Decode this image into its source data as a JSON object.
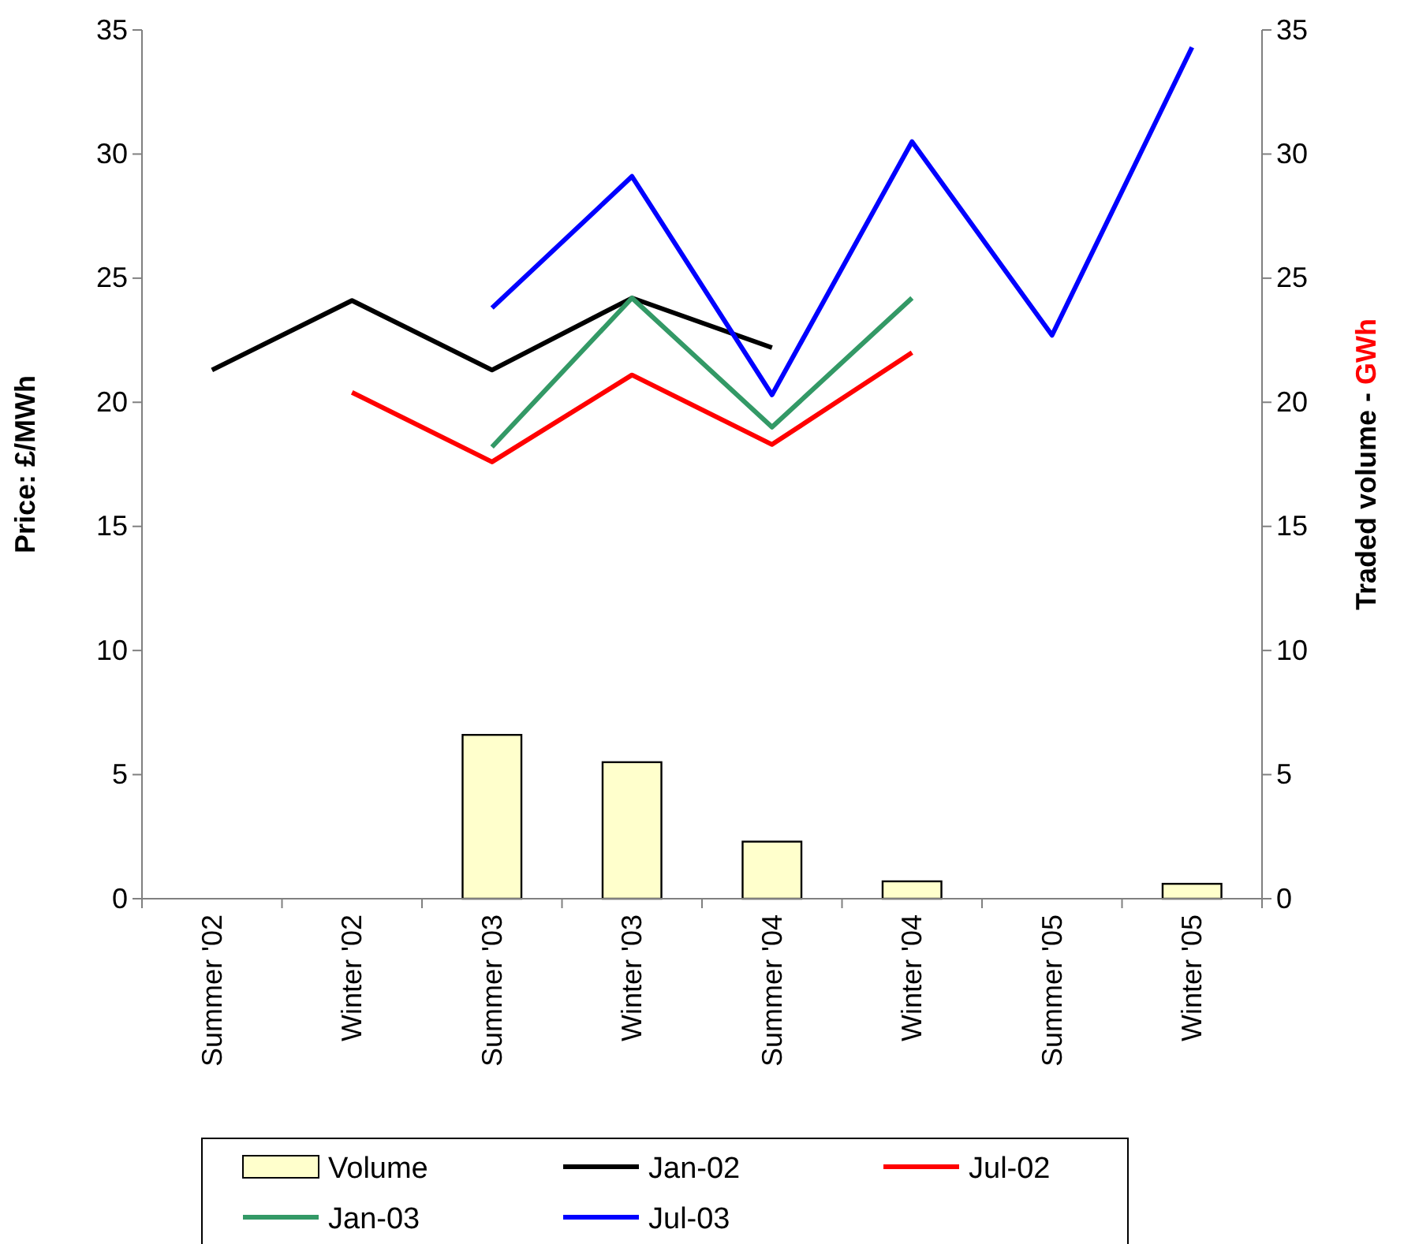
{
  "chart_data": {
    "type": "line",
    "ylabel": "Price: £/MWh",
    "y2label": "Traded volume - GWh",
    "categories": [
      "Summer '02",
      "Winter '02",
      "Summer '03",
      "Winter '03",
      "Summer '04",
      "Winter '04",
      "Summer '05",
      "Winter '05"
    ],
    "ylim": [
      0,
      35
    ],
    "yticks": [
      0,
      5,
      10,
      15,
      20,
      25,
      30,
      35
    ],
    "y2lim": [
      0,
      35
    ],
    "y2ticks": [
      0,
      5,
      10,
      15,
      20,
      25,
      30,
      35
    ],
    "grid": false,
    "legend": "bottom",
    "marker": "none",
    "line_style": "solid",
    "series": [
      {
        "name": "Volume",
        "type": "bar",
        "color": "#ffffcc",
        "values": [
          null,
          null,
          6.6,
          5.5,
          2.3,
          0.7,
          null,
          0.6
        ]
      },
      {
        "name": "Jan-02",
        "color": "#000000",
        "values": [
          21.3,
          24.1,
          21.3,
          24.2,
          22.2,
          null,
          null,
          null
        ]
      },
      {
        "name": "Jul-02",
        "color": "#ff0000",
        "values": [
          null,
          20.4,
          17.6,
          21.1,
          18.3,
          22.0,
          null,
          null
        ]
      },
      {
        "name": "Jan-03",
        "color": "#339966",
        "values": [
          null,
          null,
          18.2,
          24.2,
          19.0,
          24.2,
          null,
          null
        ]
      },
      {
        "name": "Jul-03",
        "color": "#0000ff",
        "values": [
          null,
          null,
          23.8,
          29.1,
          20.3,
          30.5,
          22.7,
          34.3
        ]
      }
    ]
  }
}
